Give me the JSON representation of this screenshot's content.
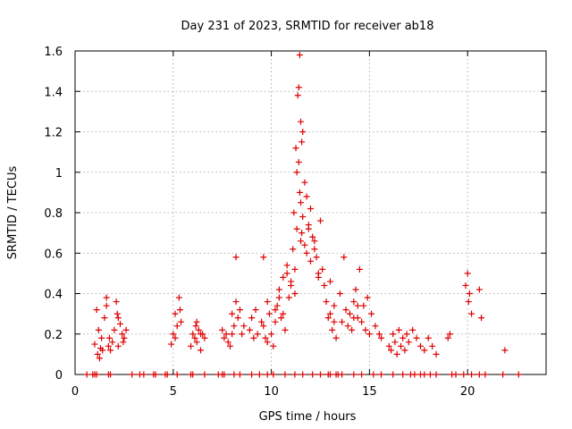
{
  "chart_data": {
    "type": "scatter",
    "title": "Day 231 of 2023, SRMTID for receiver ab18",
    "xlabel": "GPS time / hours",
    "ylabel": "SRMTID / TECUs",
    "xlim": [
      0,
      24
    ],
    "ylim": [
      0,
      1.6
    ],
    "xticks": [
      0,
      5,
      10,
      15,
      20
    ],
    "yticks": [
      0,
      0.2,
      0.4,
      0.6,
      0.8,
      1,
      1.2,
      1.4,
      1.6
    ],
    "xtick_labels": [
      "0",
      "5",
      "10",
      "15",
      "20"
    ],
    "ytick_labels": [
      "0",
      "0.2",
      "0.4",
      "0.6",
      "0.8",
      "1",
      "1.2",
      "1.4",
      "1.6"
    ],
    "grid": true,
    "marker": "plus",
    "color": "#dd0000",
    "series": [
      {
        "name": "SRMTID",
        "x": [
          0.6,
          0.9,
          1.0,
          1.1,
          1.7,
          1.8,
          2.9,
          3.3,
          3.5,
          4.0,
          4.1,
          4.6,
          4.7,
          5.2,
          5.9,
          6.0,
          6.6,
          7.3,
          7.5,
          7.6,
          8.1,
          8.4,
          9.0,
          9.4,
          9.8,
          10.1,
          10.7,
          11.2,
          11.6,
          12.1,
          12.5,
          12.9,
          13.0,
          13.3,
          13.4,
          13.6,
          14.2,
          14.6,
          15.2,
          15.6,
          16.2,
          16.7,
          17.1,
          17.3,
          17.6,
          17.8,
          18.1,
          18.4,
          19.2,
          19.4,
          19.8,
          20.2,
          20.6,
          20.9,
          21.8,
          22.6,
          1.0,
          1.1,
          1.15,
          1.2,
          1.25,
          1.3,
          1.35,
          1.4,
          1.5,
          1.6,
          1.7,
          1.75,
          1.8,
          1.9,
          2.0,
          2.1,
          2.15,
          2.2,
          2.3,
          2.4,
          2.45,
          2.5,
          2.6,
          4.9,
          5.0,
          5.1,
          5.2,
          5.3,
          5.35,
          5.4,
          5.9,
          6.0,
          6.1,
          6.15,
          6.2,
          6.3,
          6.4,
          6.5,
          6.6,
          7.5,
          7.6,
          7.7,
          7.9,
          8.0,
          8.1,
          8.2,
          8.3,
          8.4,
          8.5,
          8.6,
          8.9,
          9.0,
          9.1,
          9.2,
          9.3,
          9.5,
          9.6,
          9.7,
          9.8,
          9.9,
          10.0,
          10.1,
          10.2,
          10.3,
          10.4,
          10.5,
          10.6,
          10.7,
          10.8,
          10.9,
          11.0,
          11.1,
          11.15,
          11.2,
          11.25,
          11.3,
          11.35,
          11.4,
          11.45,
          11.5,
          11.5,
          11.55,
          11.6,
          11.7,
          11.8,
          11.9,
          12.0,
          12.1,
          12.2,
          12.3,
          12.4,
          12.5,
          12.6,
          12.7,
          12.8,
          12.9,
          13.0,
          13.1,
          13.2,
          13.3,
          13.5,
          13.6,
          13.7,
          13.8,
          13.9,
          14.0,
          14.1,
          14.2,
          14.3,
          14.4,
          14.5,
          14.6,
          14.7,
          14.8,
          14.9,
          15.0,
          15.1,
          15.3,
          15.5,
          15.6,
          16.0,
          16.1,
          16.2,
          16.3,
          16.4,
          16.5,
          16.6,
          16.7,
          16.8,
          16.9,
          17.0,
          17.2,
          17.4,
          17.6,
          17.8,
          18.0,
          18.2,
          18.4,
          19.0,
          19.1,
          19.9,
          20.0,
          20.05,
          20.1,
          20.2,
          20.6,
          20.7,
          21.9,
          11.3,
          11.4,
          11.45,
          11.5,
          11.55,
          11.6,
          11.7,
          11.8,
          11.9,
          12.0,
          12.2,
          12.4,
          10.2,
          10.4,
          10.6,
          10.8,
          11.0,
          11.2,
          9.6,
          9.8,
          13.0,
          13.2,
          14.2,
          14.4,
          8.2,
          8.0,
          7.8,
          6.2,
          6.4,
          5.1,
          1.6,
          2.2
        ],
        "y": [
          0,
          0,
          0,
          0,
          0,
          0,
          0,
          0,
          0,
          0,
          0,
          0,
          0,
          0,
          0,
          0,
          0,
          0,
          0,
          0,
          0,
          0,
          0,
          0,
          0,
          0,
          0,
          0,
          0,
          0,
          0,
          0,
          0,
          0,
          0,
          0,
          0,
          0,
          0,
          0,
          0,
          0,
          0,
          0,
          0,
          0,
          0,
          0,
          0,
          0,
          0,
          0,
          0,
          0,
          0,
          0,
          0.15,
          0.32,
          0.1,
          0.22,
          0.08,
          0.13,
          0.18,
          0.12,
          0.28,
          0.38,
          0.14,
          0.18,
          0.12,
          0.16,
          0.22,
          0.36,
          0.3,
          0.14,
          0.25,
          0.2,
          0.16,
          0.18,
          0.22,
          0.15,
          0.2,
          0.18,
          0.24,
          0.38,
          0.32,
          0.26,
          0.14,
          0.2,
          0.18,
          0.24,
          0.16,
          0.22,
          0.12,
          0.2,
          0.18,
          0.22,
          0.18,
          0.2,
          0.14,
          0.3,
          0.24,
          0.36,
          0.28,
          0.32,
          0.2,
          0.24,
          0.22,
          0.28,
          0.18,
          0.32,
          0.2,
          0.26,
          0.58,
          0.18,
          0.16,
          0.3,
          0.2,
          0.14,
          0.26,
          0.34,
          0.42,
          0.28,
          0.48,
          0.22,
          0.54,
          0.38,
          0.44,
          0.62,
          0.8,
          0.52,
          1.12,
          0.72,
          1.38,
          1.42,
          1.58,
          1.25,
          0.66,
          1.15,
          1.2,
          0.95,
          0.88,
          0.74,
          0.82,
          0.68,
          0.62,
          0.58,
          0.48,
          0.76,
          0.52,
          0.44,
          0.36,
          0.28,
          0.46,
          0.22,
          0.34,
          0.18,
          0.4,
          0.26,
          0.58,
          0.32,
          0.24,
          0.3,
          0.22,
          0.36,
          0.42,
          0.28,
          0.52,
          0.26,
          0.34,
          0.22,
          0.38,
          0.2,
          0.3,
          0.24,
          0.2,
          0.18,
          0.14,
          0.12,
          0.2,
          0.16,
          0.1,
          0.22,
          0.14,
          0.18,
          0.12,
          0.2,
          0.16,
          0.22,
          0.18,
          0.14,
          0.12,
          0.18,
          0.14,
          0.1,
          0.18,
          0.2,
          0.44,
          0.5,
          0.36,
          0.4,
          0.3,
          0.42,
          0.28,
          0.12,
          1.0,
          1.05,
          0.9,
          0.85,
          0.7,
          0.78,
          0.64,
          0.6,
          0.72,
          0.56,
          0.66,
          0.5,
          0.32,
          0.38,
          0.3,
          0.5,
          0.46,
          0.4,
          0.24,
          0.36,
          0.3,
          0.26,
          0.28,
          0.34,
          0.58,
          0.2,
          0.16,
          0.26,
          0.2,
          0.3,
          0.34,
          0.28
        ]
      }
    ]
  }
}
